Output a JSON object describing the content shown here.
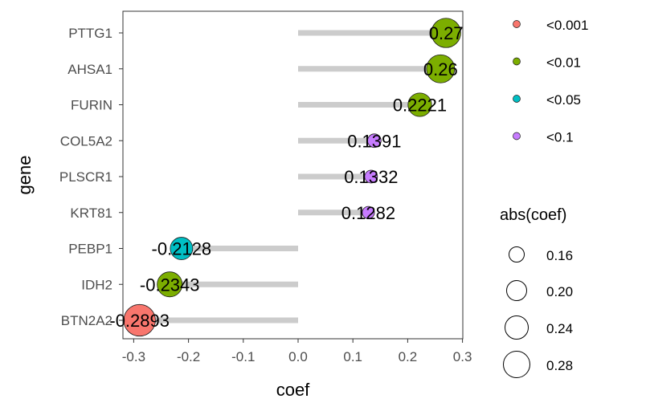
{
  "chart_data": {
    "type": "lollipop",
    "xlabel": "coef",
    "ylabel": "gene",
    "xlim": [
      -0.32,
      0.3
    ],
    "xticks": [
      -0.3,
      -0.2,
      -0.1,
      0.0,
      0.1,
      0.2,
      0.3
    ],
    "xtick_labels": [
      "-0.3",
      "-0.2",
      "-0.1",
      "0.0",
      "0.1",
      "0.2",
      "0.3"
    ],
    "grid": false,
    "genes": [
      {
        "gene": "PTTG1",
        "coef": 0.27,
        "label": "0.27",
        "pvalue_group": "<0.01"
      },
      {
        "gene": "AHSA1",
        "coef": 0.26,
        "label": "0.26",
        "pvalue_group": "<0.01"
      },
      {
        "gene": "FURIN",
        "coef": 0.2221,
        "label": "0.2221",
        "pvalue_group": "<0.01"
      },
      {
        "gene": "COL5A2",
        "coef": 0.1391,
        "label": "0.1391",
        "pvalue_group": "<0.1"
      },
      {
        "gene": "PLSCR1",
        "coef": 0.1332,
        "label": "0.1332",
        "pvalue_group": "<0.1"
      },
      {
        "gene": "KRT81",
        "coef": 0.1282,
        "label": "0.1282",
        "pvalue_group": "<0.1"
      },
      {
        "gene": "PEBP1",
        "coef": -0.2128,
        "label": "-0.2128",
        "pvalue_group": "<0.05"
      },
      {
        "gene": "IDH2",
        "coef": -0.2343,
        "label": "-0.2343",
        "pvalue_group": "<0.01"
      },
      {
        "gene": "BTN2A2",
        "coef": -0.2893,
        "label": "-0.2893",
        "pvalue_group": "<0.001"
      }
    ],
    "color_legend": {
      "items": [
        {
          "label": "<0.001",
          "color": "#F8766D"
        },
        {
          "label": "<0.01",
          "color": "#7CAE00"
        },
        {
          "label": "<0.05",
          "color": "#00BFC4"
        },
        {
          "label": "<0.1",
          "color": "#C77CFF"
        }
      ]
    },
    "size_legend": {
      "title": "abs(coef)",
      "items": [
        {
          "label": "0.16",
          "value": 0.16
        },
        {
          "label": "0.20",
          "value": 0.2
        },
        {
          "label": "0.24",
          "value": 0.24
        },
        {
          "label": "0.28",
          "value": 0.28
        }
      ]
    },
    "stem_color": "#CCCCCC"
  }
}
